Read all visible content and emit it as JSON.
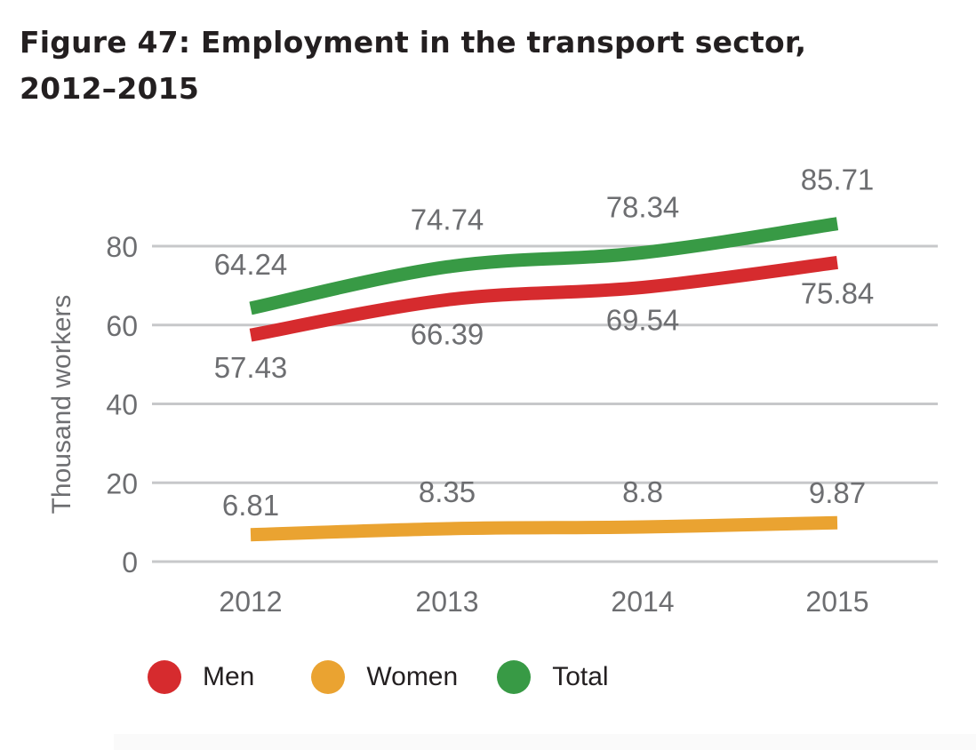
{
  "title": {
    "line1": "Figure 47: Employment in the transport sector,",
    "line2": "2012–2015"
  },
  "chart_data": {
    "type": "line",
    "x": [
      "2012",
      "2013",
      "2014",
      "2015"
    ],
    "ylabel": "Thousand workers",
    "xlabel": "",
    "ylim": [
      0,
      80
    ],
    "yticks": [
      0,
      20,
      40,
      60,
      80
    ],
    "grid": true,
    "legend_position": "bottom-left",
    "series": [
      {
        "name": "Men",
        "color": "#d62b2e",
        "values": [
          57.43,
          66.39,
          69.54,
          75.84
        ]
      },
      {
        "name": "Women",
        "color": "#eaa331",
        "values": [
          6.81,
          8.35,
          8.8,
          9.87
        ]
      },
      {
        "name": "Total",
        "color": "#389a45",
        "values": [
          64.24,
          74.74,
          78.34,
          85.71
        ]
      }
    ],
    "data_labels": {
      "Men": [
        "57.43",
        "66.39",
        "69.54",
        "75.84"
      ],
      "Women": [
        "6.81",
        "8.35",
        "8.8",
        "9.87"
      ],
      "Total": [
        "64.24",
        "74.74",
        "78.34",
        "85.71"
      ]
    }
  },
  "colors": {
    "grid": "#c7c8ca",
    "text": "#6d6e71",
    "title": "#231f20"
  }
}
